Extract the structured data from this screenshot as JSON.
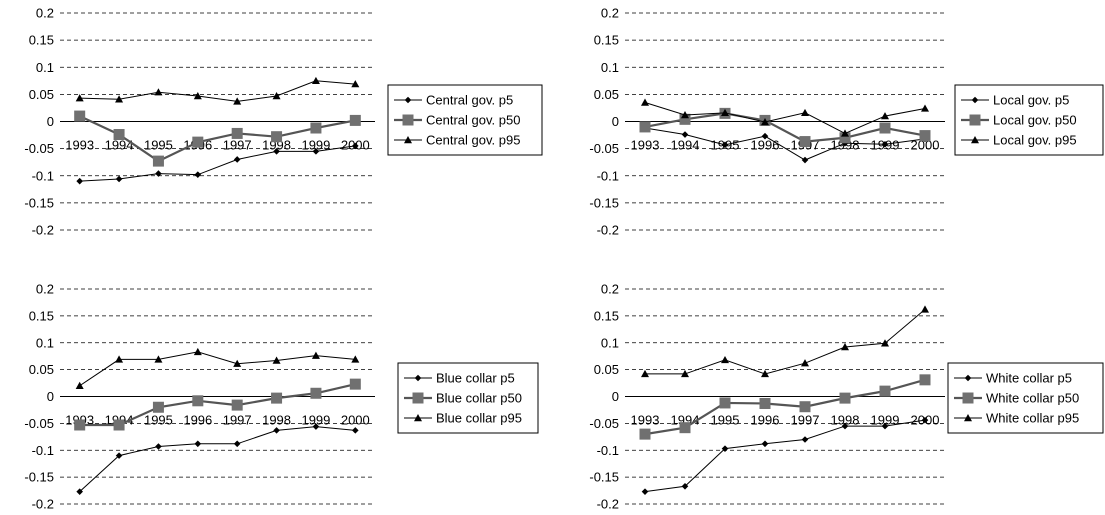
{
  "chart_data": [
    {
      "type": "line",
      "title": "",
      "xlabel": "",
      "ylabel": "",
      "x": [
        "1993",
        "1994",
        "1995",
        "1996",
        "1997",
        "1998",
        "1999",
        "2000"
      ],
      "ylim": [
        -0.2,
        0.2
      ],
      "yticks": [
        "0.2",
        "0.15",
        "0.1",
        "0.05",
        "0",
        "-0.05",
        "-0.1",
        "-0.15",
        "-0.2"
      ],
      "grid": "horizontal-dashed",
      "legend_position": "right",
      "series": [
        {
          "name": "Central gov. p5",
          "marker": "diamond",
          "values": [
            -0.11,
            -0.106,
            -0.096,
            -0.098,
            -0.07,
            -0.055,
            -0.055,
            -0.045
          ]
        },
        {
          "name": "Central gov. p50",
          "marker": "square",
          "values": [
            0.01,
            -0.024,
            -0.073,
            -0.038,
            -0.022,
            -0.028,
            -0.012,
            0.002
          ]
        },
        {
          "name": "Central gov. p95",
          "marker": "triangle",
          "values": [
            0.043,
            0.041,
            0.054,
            0.047,
            0.037,
            0.047,
            0.075,
            0.069
          ]
        }
      ]
    },
    {
      "type": "line",
      "title": "",
      "xlabel": "",
      "ylabel": "",
      "x": [
        "1993",
        "1994",
        "1995",
        "1996",
        "1997",
        "1998",
        "1999",
        "2000"
      ],
      "ylim": [
        -0.2,
        0.2
      ],
      "yticks": [
        "0.2",
        "0.15",
        "0.1",
        "0.05",
        "0",
        "-0.05",
        "-0.1",
        "-0.15",
        "-0.2"
      ],
      "grid": "horizontal-dashed",
      "legend_position": "right",
      "series": [
        {
          "name": "Local gov. p5",
          "marker": "diamond",
          "values": [
            -0.012,
            -0.024,
            -0.043,
            -0.027,
            -0.071,
            -0.04,
            -0.042,
            -0.032
          ]
        },
        {
          "name": "Local gov. p50",
          "marker": "square",
          "values": [
            -0.01,
            0.004,
            0.015,
            0.002,
            -0.037,
            -0.03,
            -0.012,
            -0.026
          ]
        },
        {
          "name": "Local gov. p95",
          "marker": "triangle",
          "values": [
            0.035,
            0.012,
            0.016,
            -0.001,
            0.016,
            -0.022,
            0.01,
            0.024
          ]
        }
      ]
    },
    {
      "type": "line",
      "title": "",
      "xlabel": "",
      "ylabel": "",
      "x": [
        "1993",
        "1994",
        "1995",
        "1996",
        "1997",
        "1998",
        "1999",
        "2000"
      ],
      "ylim": [
        -0.2,
        0.2
      ],
      "yticks": [
        "0.2",
        "0.15",
        "0.1",
        "0.05",
        "0",
        "-0.05",
        "-0.1",
        "-0.15",
        "-0.2"
      ],
      "grid": "horizontal-dashed",
      "legend_position": "right",
      "series": [
        {
          "name": "Blue collar p5",
          "marker": "diamond",
          "values": [
            -0.177,
            -0.11,
            -0.093,
            -0.088,
            -0.088,
            -0.063,
            -0.056,
            -0.063
          ]
        },
        {
          "name": "Blue collar p50",
          "marker": "square",
          "values": [
            -0.053,
            -0.053,
            -0.02,
            -0.008,
            -0.016,
            -0.003,
            0.006,
            0.023
          ]
        },
        {
          "name": "Blue collar p95",
          "marker": "triangle",
          "values": [
            0.02,
            0.069,
            0.069,
            0.083,
            0.061,
            0.067,
            0.076,
            0.069
          ]
        }
      ]
    },
    {
      "type": "line",
      "title": "",
      "xlabel": "",
      "ylabel": "",
      "x": [
        "1993",
        "1994",
        "1995",
        "1996",
        "1997",
        "1998",
        "1999",
        "2000"
      ],
      "ylim": [
        -0.2,
        0.2
      ],
      "yticks": [
        "0.2",
        "0.15",
        "0.1",
        "0.05",
        "0",
        "-0.05",
        "-0.1",
        "-0.15",
        "-0.2"
      ],
      "grid": "horizontal-dashed",
      "legend_position": "right",
      "series": [
        {
          "name": "White collar p5",
          "marker": "diamond",
          "values": [
            -0.177,
            -0.167,
            -0.097,
            -0.088,
            -0.08,
            -0.055,
            -0.055,
            -0.044
          ]
        },
        {
          "name": "White collar p50",
          "marker": "square",
          "values": [
            -0.07,
            -0.058,
            -0.012,
            -0.013,
            -0.019,
            -0.003,
            0.01,
            0.031
          ]
        },
        {
          "name": "White collar p95",
          "marker": "triangle",
          "values": [
            0.042,
            0.042,
            0.068,
            0.042,
            0.062,
            0.092,
            0.099,
            0.162
          ]
        }
      ]
    }
  ],
  "colors": {
    "series_line": "#000000",
    "p50_line": "#555555",
    "p50_marker": "#707070",
    "grid": "#000000"
  }
}
